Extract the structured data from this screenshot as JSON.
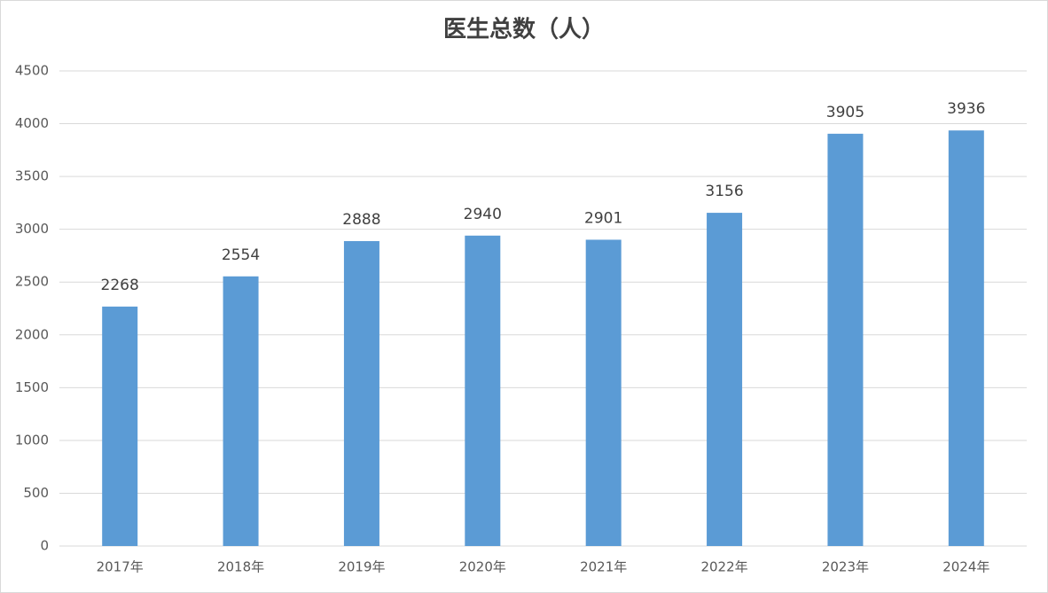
{
  "chart_data": {
    "type": "bar",
    "title": "医生总数（人）",
    "categories": [
      "2017年",
      "2018年",
      "2019年",
      "2020年",
      "2021年",
      "2022年",
      "2023年",
      "2024年"
    ],
    "values": [
      2268,
      2554,
      2888,
      2940,
      2901,
      3156,
      3905,
      3936
    ],
    "color": "#5b9bd5",
    "ylim": [
      0,
      4500
    ],
    "yticks": [
      0,
      500,
      1000,
      1500,
      2000,
      2500,
      3000,
      3500,
      4000,
      4500
    ],
    "grid": true
  }
}
